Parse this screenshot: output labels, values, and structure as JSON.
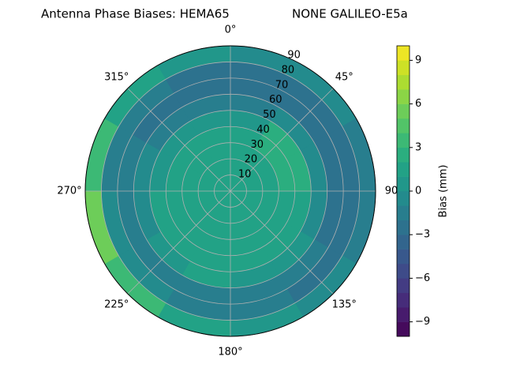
{
  "chart_data": {
    "type": "polar_contour",
    "title": "Antenna Phase Biases: HEMA65",
    "subtitle": "NONE GALILEO-E5a",
    "azimuth_direction": "clockwise",
    "azimuth_zero": "top",
    "rlim": [
      0,
      90
    ],
    "rticks": [
      10,
      20,
      30,
      40,
      50,
      60,
      70,
      80,
      90
    ],
    "thetaticks": [
      {
        "value": 0,
        "label": "0°"
      },
      {
        "value": 45,
        "label": "45°"
      },
      90,
      {
        "value": 135,
        "label": "135°"
      },
      {
        "value": 180,
        "label": "180°"
      },
      {
        "value": 225,
        "label": "225°"
      },
      {
        "value": 270,
        "label": "270°"
      },
      {
        "value": 315,
        "label": "315°"
      }
    ],
    "grid": true,
    "zenith_edges": [
      0,
      10,
      20,
      30,
      40,
      50,
      60,
      70,
      80,
      90
    ],
    "azimuth_edges": [
      0,
      30,
      60,
      90,
      120,
      150,
      180,
      210,
      240,
      270,
      300,
      330,
      360
    ],
    "values": [
      [
        1,
        1,
        1,
        1,
        1,
        1,
        1,
        1,
        1,
        1,
        1,
        1
      ],
      [
        1,
        1,
        1,
        1,
        1,
        1,
        1,
        1,
        1,
        1,
        1,
        1
      ],
      [
        1,
        1.5,
        1.5,
        1,
        1,
        1,
        1,
        1,
        1,
        1,
        1,
        1
      ],
      [
        1,
        2,
        2,
        1.5,
        1,
        1,
        1,
        1,
        1,
        1,
        1,
        1
      ],
      [
        0.5,
        2,
        2,
        1.5,
        1,
        1,
        1.5,
        1.5,
        1,
        0.5,
        0.5,
        0.5
      ],
      [
        -1.5,
        -1,
        -0.5,
        -1,
        0,
        0.5,
        1,
        0.5,
        -0.5,
        -1,
        -1.5,
        -1.5
      ],
      [
        -2.5,
        -2.5,
        -2.5,
        -2.5,
        -2,
        -1.5,
        -1.5,
        -1.5,
        -2,
        -2,
        -2.5,
        -2.5
      ],
      [
        -2.5,
        -2.5,
        -2.5,
        -2.5,
        -2.5,
        -2,
        -1.5,
        -1,
        -1,
        -1.5,
        -2,
        -2.5
      ],
      [
        -0.5,
        -1,
        -1.5,
        -1.5,
        -1,
        0,
        1,
        3,
        5,
        3,
        1.5,
        0
      ]
    ],
    "colormap": "viridis",
    "clim": [
      -10,
      10
    ],
    "level_step": 1,
    "cticks": [
      {
        "value": -9,
        "label": "−9"
      },
      {
        "value": -6,
        "label": "−6"
      },
      {
        "value": -3,
        "label": "−3"
      },
      0,
      3,
      6,
      9
    ],
    "colorbar_label": "Bias (mm)"
  }
}
